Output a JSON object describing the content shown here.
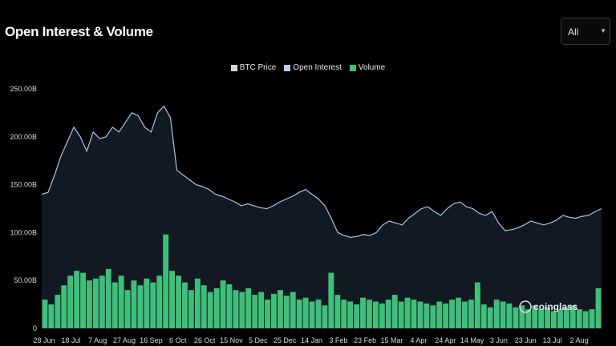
{
  "title": "Open Interest & Volume",
  "range_select": {
    "value": "All",
    "caret": "▼"
  },
  "legend": [
    {
      "label": "BTC Price",
      "color": "#d9d9d9"
    },
    {
      "label": "Open Interest",
      "color": "#b9cdf2"
    },
    {
      "label": "Volume",
      "color": "#3fbf7a"
    }
  ],
  "watermark": "coinglass",
  "chart_data": {
    "type": "area",
    "title": "Open Interest & Volume",
    "y_ticks": [
      "250.00B",
      "200.00B",
      "150.00B",
      "100.00B",
      "50.00B",
      "0"
    ],
    "ylim": [
      0,
      250
    ],
    "x_ticks": [
      "28 Jun",
      "18 Jul",
      "7 Aug",
      "27 Aug",
      "16 Sep",
      "6 Oct",
      "26 Oct",
      "15 Nov",
      "5 Dec",
      "25 Dec",
      "14 Jan",
      "3 Feb",
      "23 Feb",
      "15 Mar",
      "4 Apr",
      "24 Apr",
      "14 May",
      "3 Jun",
      "23 Jun",
      "13 Jul",
      "2 Aug"
    ],
    "series": [
      {
        "name": "Open Interest",
        "unit": "B",
        "values": [
          140,
          142,
          160,
          180,
          195,
          210,
          200,
          185,
          205,
          198,
          200,
          210,
          205,
          215,
          225,
          222,
          210,
          205,
          225,
          232,
          220,
          165,
          160,
          155,
          150,
          148,
          145,
          140,
          138,
          135,
          132,
          128,
          130,
          128,
          126,
          125,
          128,
          132,
          135,
          138,
          142,
          145,
          140,
          135,
          128,
          115,
          100,
          97,
          95,
          96,
          98,
          97,
          100,
          108,
          112,
          110,
          108,
          115,
          120,
          125,
          127,
          122,
          118,
          125,
          130,
          132,
          127,
          125,
          120,
          118,
          122,
          110,
          102,
          103,
          105,
          108,
          112,
          110,
          108,
          110,
          113,
          118,
          116,
          115,
          117,
          118,
          122,
          125
        ]
      },
      {
        "name": "Volume",
        "unit": "B",
        "values": [
          30,
          25,
          35,
          45,
          55,
          60,
          58,
          50,
          52,
          55,
          62,
          48,
          55,
          40,
          50,
          45,
          52,
          48,
          55,
          98,
          60,
          55,
          48,
          40,
          52,
          45,
          38,
          42,
          50,
          46,
          40,
          38,
          42,
          35,
          38,
          30,
          36,
          40,
          34,
          38,
          30,
          32,
          28,
          30,
          24,
          58,
          35,
          30,
          28,
          25,
          32,
          30,
          28,
          26,
          30,
          35,
          28,
          32,
          30,
          28,
          26,
          24,
          28,
          26,
          30,
          32,
          28,
          30,
          48,
          25,
          22,
          30,
          28,
          26,
          22,
          24,
          20,
          24,
          20,
          22,
          18,
          20,
          22,
          24,
          20,
          18,
          20,
          42
        ]
      }
    ]
  }
}
